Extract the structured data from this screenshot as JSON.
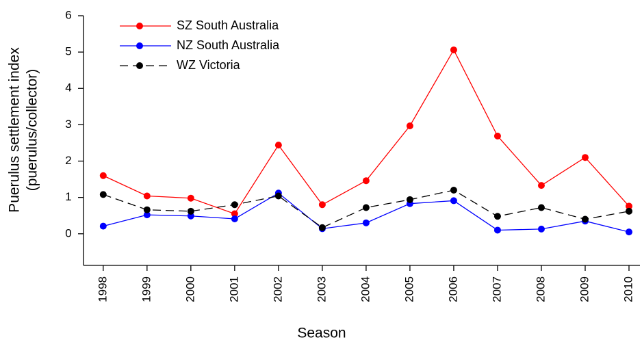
{
  "chart_data": {
    "type": "line",
    "xlabel": "Season",
    "ylabel": [
      "Puerulus settlement index",
      "(puerulus/collector)"
    ],
    "x": [
      1998,
      1999,
      2000,
      2001,
      2002,
      2003,
      2004,
      2005,
      2006,
      2007,
      2008,
      2009,
      2010
    ],
    "xlim": [
      1997.55,
      2010.25
    ],
    "xticks": [
      1998,
      1999,
      2000,
      2001,
      2002,
      2003,
      2004,
      2005,
      2006,
      2007,
      2008,
      2009,
      2010
    ],
    "ylim": [
      -0.87,
      6
    ],
    "yticks": [
      0,
      1,
      2,
      3,
      4,
      5,
      6
    ],
    "legend": "top-left",
    "series": [
      {
        "name": "SZ South Australia",
        "color": "#ff0000",
        "dash": false,
        "values": [
          1.6,
          1.04,
          0.98,
          0.55,
          2.44,
          0.8,
          1.46,
          2.97,
          5.06,
          2.69,
          1.33,
          2.1,
          0.76
        ]
      },
      {
        "name": "NZ South Australia",
        "color": "#0000ff",
        "dash": false,
        "values": [
          0.21,
          0.52,
          0.49,
          0.41,
          1.12,
          0.14,
          0.3,
          0.83,
          0.91,
          0.1,
          0.13,
          0.35,
          0.05
        ]
      },
      {
        "name": "WZ Victoria",
        "color": "#000000",
        "dash": true,
        "values": [
          1.08,
          0.66,
          0.62,
          0.8,
          1.04,
          0.17,
          0.72,
          0.94,
          1.2,
          0.48,
          0.72,
          0.4,
          0.62
        ]
      }
    ]
  }
}
